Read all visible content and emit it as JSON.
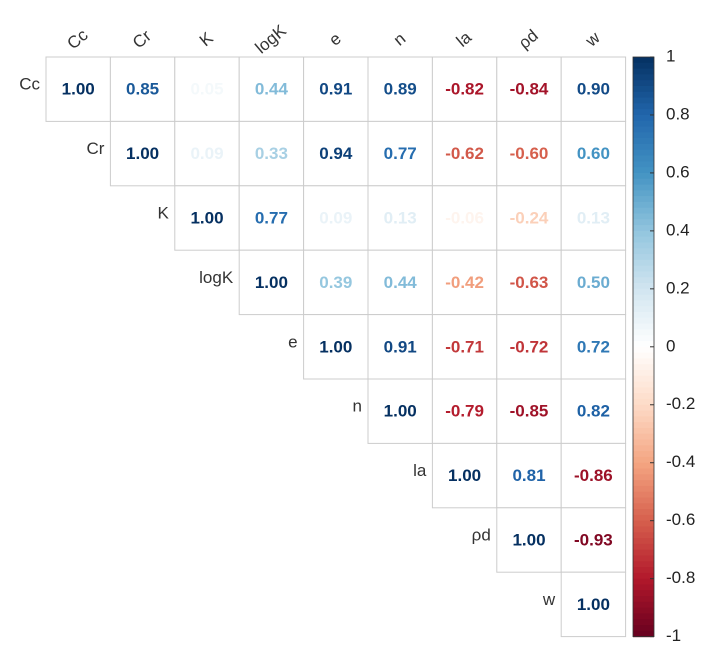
{
  "chart_data": {
    "type": "corrplot",
    "variables": [
      "Cc",
      "Cr",
      "K",
      "logK",
      "e",
      "n",
      "la",
      "ρd",
      "w"
    ],
    "values": [
      [
        1.0,
        0.85,
        0.05,
        0.44,
        0.91,
        0.89,
        -0.82,
        -0.84,
        0.9
      ],
      [
        null,
        1.0,
        0.09,
        0.33,
        0.94,
        0.77,
        -0.62,
        -0.6,
        0.6
      ],
      [
        null,
        null,
        1.0,
        0.77,
        0.09,
        0.13,
        -0.06,
        -0.24,
        0.13
      ],
      [
        null,
        null,
        null,
        1.0,
        0.39,
        0.44,
        -0.42,
        -0.63,
        0.5
      ],
      [
        null,
        null,
        null,
        null,
        1.0,
        0.91,
        -0.71,
        -0.72,
        0.72
      ],
      [
        null,
        null,
        null,
        null,
        null,
        1.0,
        -0.79,
        -0.85,
        0.82
      ],
      [
        null,
        null,
        null,
        null,
        null,
        null,
        1.0,
        0.81,
        -0.86
      ],
      [
        null,
        null,
        null,
        null,
        null,
        null,
        null,
        1.0,
        -0.93
      ],
      [
        null,
        null,
        null,
        null,
        null,
        null,
        null,
        null,
        1.0
      ]
    ],
    "value_labels": [
      [
        "1.00",
        "0.85",
        "0.05",
        "0.44",
        "0.91",
        "0.89",
        "-0.82",
        "-0.84",
        "0.90"
      ],
      [
        null,
        "1.00",
        "0.09",
        "0.33",
        "0.94",
        "0.77",
        "-0.62",
        "-0.60",
        "0.60"
      ],
      [
        null,
        null,
        "1.00",
        "0.77",
        "0.09",
        "0.13",
        "-0.06",
        "-0.24",
        "0.13"
      ],
      [
        null,
        null,
        null,
        "1.00",
        "0.39",
        "0.44",
        "-0.42",
        "-0.63",
        "0.50"
      ],
      [
        null,
        null,
        null,
        null,
        "1.00",
        "0.91",
        "-0.71",
        "-0.72",
        "0.72"
      ],
      [
        null,
        null,
        null,
        null,
        null,
        "1.00",
        "-0.79",
        "-0.85",
        "0.82"
      ],
      [
        null,
        null,
        null,
        null,
        null,
        null,
        "1.00",
        "0.81",
        "-0.86"
      ],
      [
        null,
        null,
        null,
        null,
        null,
        null,
        null,
        "1.00",
        "-0.93"
      ],
      [
        null,
        null,
        null,
        null,
        null,
        null,
        null,
        null,
        "1.00"
      ]
    ],
    "clim": [
      -1,
      1
    ],
    "cticks": [
      1,
      0.8,
      0.6,
      0.4,
      0.2,
      0,
      -0.2,
      -0.4,
      -0.6,
      -0.8,
      -1
    ],
    "colormap": [
      "#67001F",
      "#B2182B",
      "#D6604D",
      "#F4A582",
      "#FDDBC7",
      "#FFFFFF",
      "#D1E5F0",
      "#92C5DE",
      "#4393C3",
      "#2166AC",
      "#053061"
    ]
  }
}
